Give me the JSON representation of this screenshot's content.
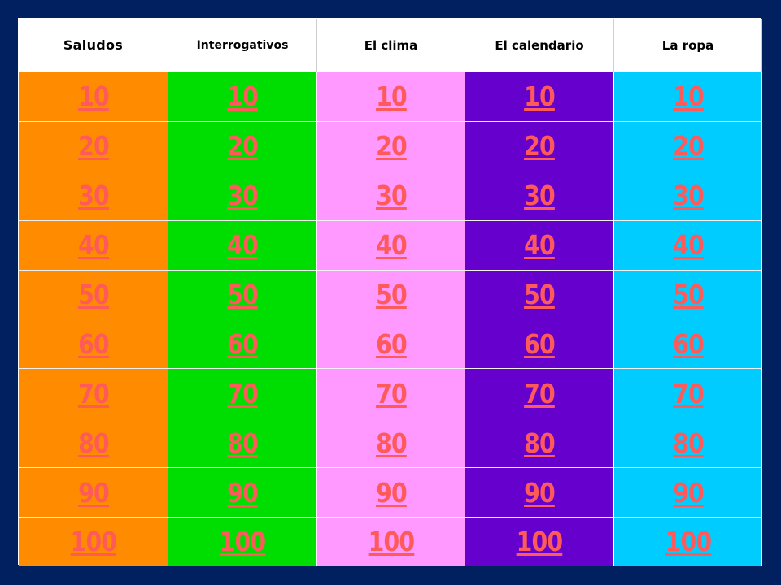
{
  "board": {
    "categories": [
      {
        "label": "Saludos",
        "color": "#ff8c00"
      },
      {
        "label": "Interrogativos",
        "color": "#00dd00"
      },
      {
        "label": "El clima",
        "color": "#ff99ff"
      },
      {
        "label": "El calendario",
        "color": "#6600cc"
      },
      {
        "label": "La ropa",
        "color": "#00ccff"
      }
    ],
    "values": [
      "10",
      "20",
      "30",
      "40",
      "50",
      "60",
      "70",
      "80",
      "90",
      "100"
    ],
    "value_text_color": "#ff5a5a",
    "background_color": "#002060"
  }
}
